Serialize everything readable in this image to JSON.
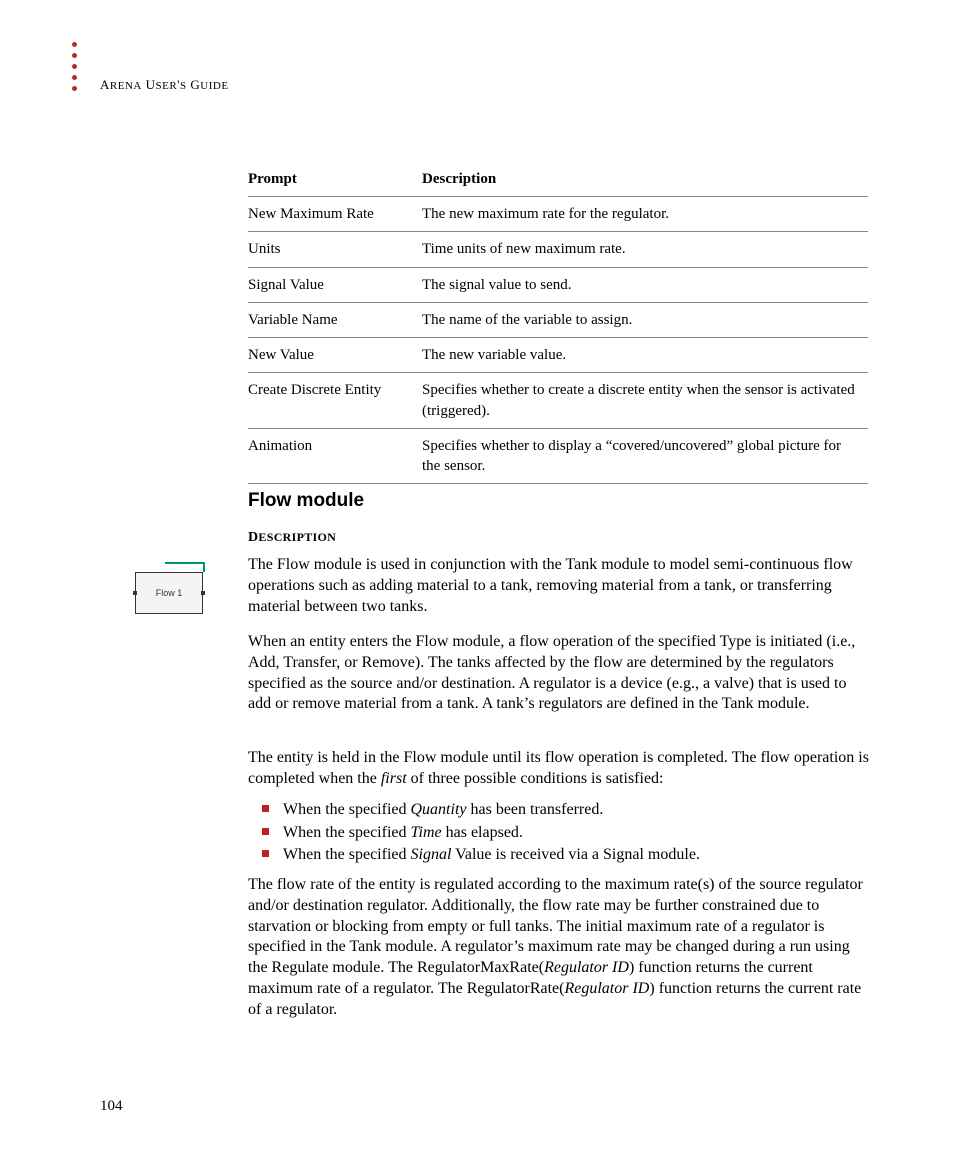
{
  "header": "Arena User's Guide",
  "table": {
    "columns": [
      "Prompt",
      "Description"
    ],
    "rows": [
      [
        "New Maximum Rate",
        "The new maximum rate for the regulator."
      ],
      [
        "Units",
        "Time units of new maximum rate."
      ],
      [
        "Signal Value",
        "The signal value to send."
      ],
      [
        "Variable Name",
        "The name of the variable to assign."
      ],
      [
        "New Value",
        "The new variable value."
      ],
      [
        "Create Discrete Entity",
        "Specifies whether to create a discrete entity when the sensor is activated (triggered)."
      ],
      [
        "Animation",
        "Specifies whether to display a “covered/uncovered” global picture for the sensor."
      ]
    ]
  },
  "section": {
    "title": "Flow module",
    "subheading": "Description",
    "icon_label": "Flow 1",
    "p1": "The Flow module is used in conjunction with the Tank module to model semi-continuous flow operations such as adding material to a tank, removing material from a tank, or transferring material between two tanks.",
    "p2": "When an entity enters the Flow module, a flow operation of the specified Type is initiated (i.e., Add, Transfer, or Remove). The tanks affected by the flow are determined by the regulators specified as the source and/or destination. A regulator is a device (e.g., a valve) that is used to add or remove material from a tank. A tank’s regulators are defined in the Tank module.",
    "p3_a": "The entity is held in the Flow module until its flow operation is completed. The flow operation is completed when the ",
    "p3_i": "first",
    "p3_b": " of three possible conditions is satisfied:",
    "bullets": {
      "b1_a": "When the specified ",
      "b1_i": "Quantity",
      "b1_b": " has been transferred.",
      "b2_a": "When the specified ",
      "b2_i": "Time",
      "b2_b": " has elapsed.",
      "b3_a": "When the specified ",
      "b3_i": "Signal",
      "b3_b": " Value is received via a Signal module."
    },
    "p4_a": "The flow rate of the entity is regulated according to the maximum rate(s) of the source regulator and/or destination regulator. Additionally, the flow rate may be further constrained due to starvation or blocking from empty or full tanks. The initial maximum rate of a regulator is specified in the Tank module. A regulator’s maximum rate may be changed during a run using the Regulate module. The RegulatorMaxRate(",
    "p4_i1": "Regulator ID",
    "p4_b": ") function returns the current maximum rate of a regulator. The RegulatorRate(",
    "p4_i2": "Regulator ID",
    "p4_c": ") function returns the current rate of a regulator."
  },
  "page_number": "104",
  "colors": {
    "bullet_red": "#c02020",
    "margin_dot": "#b03030",
    "icon_green": "#009966",
    "rule_gray": "#888888"
  }
}
